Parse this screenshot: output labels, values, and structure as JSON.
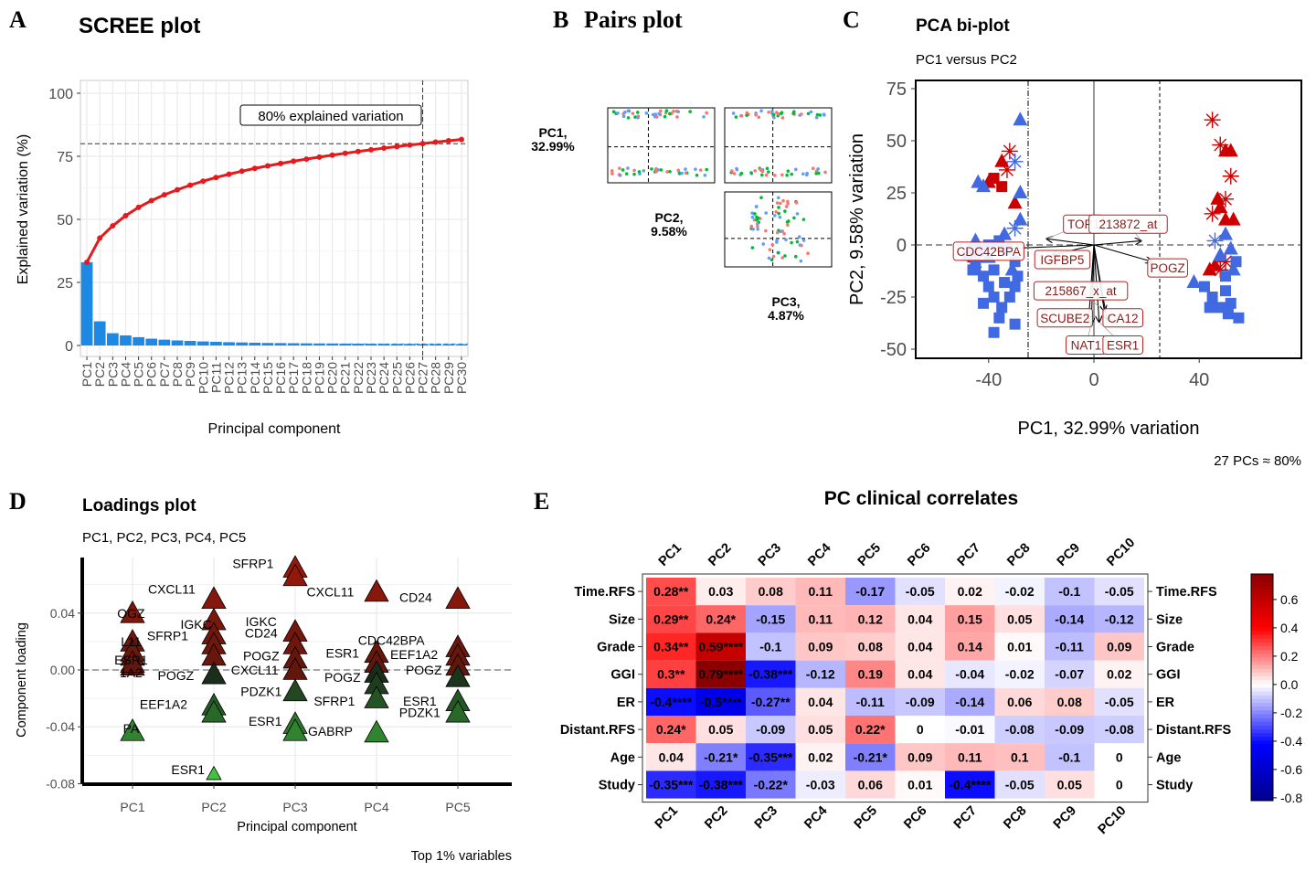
{
  "panels": {
    "a": {
      "letter": "A",
      "title": "SCREE plot",
      "xlabel": "Principal component",
      "ylabel": "Explained variation (%)",
      "annotation": "80% explained variation"
    },
    "b": {
      "letter": "B",
      "title": "Pairs plot",
      "labels": [
        [
          "PC1,",
          "32.99%"
        ],
        [
          "PC2,",
          "9.58%"
        ],
        [
          "PC3,",
          "4.87%"
        ]
      ]
    },
    "c": {
      "letter": "C",
      "title": "PCA bi-plot",
      "subtitle": "PC1 versus PC2",
      "xlabel": "PC1, 32.99% variation",
      "ylabel": "PC2, 9.58% variation",
      "caption": "27 PCs ≈ 80%"
    },
    "d": {
      "letter": "D",
      "title": "Loadings plot",
      "subtitle": "PC1, PC2, PC3, PC4, PC5",
      "xlabel": "Principal component",
      "ylabel": "Component loading",
      "caption": "Top 1% variables"
    },
    "e": {
      "letter": "E",
      "title": "PC clinical correlates"
    }
  },
  "chart_data": [
    {
      "id": "scree",
      "type": "bar",
      "title": "SCREE plot",
      "xlabel": "Principal component",
      "ylabel": "Explained variation (%)",
      "ylim": [
        0,
        100
      ],
      "yticks": [
        0,
        25,
        50,
        75,
        100
      ],
      "categories": [
        "PC1",
        "PC2",
        "PC3",
        "PC4",
        "PC5",
        "PC6",
        "PC7",
        "PC8",
        "PC9",
        "PC10",
        "PC11",
        "PC12",
        "PC13",
        "PC14",
        "PC15",
        "PC16",
        "PC17",
        "PC18",
        "PC19",
        "PC20",
        "PC21",
        "PC22",
        "PC23",
        "PC24",
        "PC25",
        "PC26",
        "PC27",
        "PC28",
        "PC29",
        "PC30"
      ],
      "values": [
        32.99,
        9.58,
        4.87,
        4.0,
        3.3,
        2.7,
        2.3,
        2.0,
        1.8,
        1.6,
        1.45,
        1.3,
        1.2,
        1.1,
        1.0,
        0.95,
        0.9,
        0.85,
        0.8,
        0.77,
        0.74,
        0.71,
        0.68,
        0.65,
        0.62,
        0.6,
        0.58,
        0.56,
        0.54,
        0.52
      ],
      "cumulative": [
        32.99,
        42.57,
        47.44,
        51.44,
        54.74,
        57.44,
        59.74,
        61.74,
        63.54,
        65.14,
        66.59,
        67.89,
        69.09,
        70.19,
        71.19,
        72.14,
        73.04,
        73.89,
        74.69,
        75.46,
        76.2,
        76.91,
        77.59,
        78.24,
        78.86,
        79.46,
        80.04,
        80.6,
        81.14,
        81.66
      ],
      "threshold": 80,
      "threshold_pc": 27,
      "colors": {
        "bar": "#1e88e5",
        "line": "#e41a1c"
      }
    },
    {
      "id": "pairs",
      "type": "scatter",
      "title": "Pairs plot",
      "series_colors": [
        "#f8766d",
        "#00ba38",
        "#619cff"
      ]
    },
    {
      "id": "biplot",
      "type": "scatter",
      "title": "PCA bi-plot",
      "subtitle": "PC1 versus PC2",
      "xlabel": "PC1, 32.99% variation",
      "ylabel": "PC2, 9.58% variation",
      "xlim": [
        -60,
        64
      ],
      "ylim": [
        -55,
        78
      ],
      "xticks": [
        -40,
        0,
        40
      ],
      "yticks": [
        -50,
        -25,
        0,
        25,
        50,
        75
      ],
      "vlines": [
        -25,
        25
      ],
      "colors": {
        "red": "#cc0000",
        "blue": "#4169e1"
      },
      "points": [
        [
          -38,
          32,
          "r",
          "s"
        ],
        [
          -35,
          28,
          "r",
          "s"
        ],
        [
          -30,
          20,
          "r",
          "t"
        ],
        [
          -35,
          40,
          "r",
          "t"
        ],
        [
          -32,
          45,
          "r",
          "x"
        ],
        [
          -40,
          30,
          "r",
          "t"
        ],
        [
          -45,
          -8,
          "r",
          "x"
        ],
        [
          -33,
          36,
          "r",
          "x"
        ],
        [
          -28,
          60,
          "b",
          "t"
        ],
        [
          -42,
          28,
          "b",
          "t"
        ],
        [
          -30,
          40,
          "b",
          "x"
        ],
        [
          -28,
          25,
          "b",
          "t"
        ],
        [
          -44,
          30,
          "b",
          "t"
        ],
        [
          -28,
          12,
          "b",
          "t"
        ],
        [
          -30,
          8,
          "b",
          "x"
        ],
        [
          -48,
          -5,
          "b",
          "s"
        ],
        [
          -45,
          -10,
          "b",
          "s"
        ],
        [
          -42,
          -15,
          "b",
          "s"
        ],
        [
          -40,
          -20,
          "b",
          "s"
        ],
        [
          -38,
          -25,
          "b",
          "s"
        ],
        [
          -35,
          -30,
          "b",
          "s"
        ],
        [
          -32,
          -25,
          "b",
          "s"
        ],
        [
          -30,
          -20,
          "b",
          "s"
        ],
        [
          -29,
          -15,
          "b",
          "s"
        ],
        [
          -30,
          -8,
          "b",
          "s"
        ],
        [
          -33,
          -2,
          "b",
          "s"
        ],
        [
          -36,
          2,
          "b",
          "s"
        ],
        [
          -40,
          0,
          "b",
          "s"
        ],
        [
          -44,
          -3,
          "b",
          "s"
        ],
        [
          -46,
          -12,
          "b",
          "s"
        ],
        [
          -38,
          -12,
          "b",
          "s"
        ],
        [
          -34,
          -18,
          "b",
          "s"
        ],
        [
          -42,
          -28,
          "b",
          "s"
        ],
        [
          -36,
          -35,
          "b",
          "s"
        ],
        [
          -30,
          -38,
          "b",
          "s"
        ],
        [
          -40,
          -6,
          "b",
          "t"
        ],
        [
          -34,
          5,
          "b",
          "t"
        ],
        [
          -31,
          -12,
          "b",
          "t"
        ],
        [
          -45,
          2,
          "b",
          "t"
        ],
        [
          -38,
          -42,
          "b",
          "s"
        ],
        [
          45,
          60,
          "r",
          "x"
        ],
        [
          50,
          45,
          "r",
          "t"
        ],
        [
          48,
          48,
          "r",
          "x"
        ],
        [
          52,
          33,
          "r",
          "x"
        ],
        [
          50,
          22,
          "r",
          "x"
        ],
        [
          48,
          18,
          "r",
          "t"
        ],
        [
          45,
          15,
          "r",
          "x"
        ],
        [
          50,
          12,
          "r",
          "t"
        ],
        [
          53,
          12,
          "r",
          "t"
        ],
        [
          46,
          -10,
          "r",
          "t"
        ],
        [
          48,
          -12,
          "r",
          "x"
        ],
        [
          50,
          -8,
          "r",
          "x"
        ],
        [
          44,
          -12,
          "r",
          "t"
        ],
        [
          52,
          45,
          "r",
          "t"
        ],
        [
          47,
          22,
          "r",
          "t"
        ],
        [
          38,
          -18,
          "b",
          "t"
        ],
        [
          42,
          -20,
          "b",
          "s"
        ],
        [
          45,
          -25,
          "b",
          "s"
        ],
        [
          48,
          -30,
          "b",
          "s"
        ],
        [
          50,
          -22,
          "b",
          "s"
        ],
        [
          52,
          -28,
          "b",
          "s"
        ],
        [
          55,
          -35,
          "b",
          "s"
        ],
        [
          50,
          -15,
          "b",
          "s"
        ],
        [
          53,
          -12,
          "b",
          "t"
        ],
        [
          48,
          -5,
          "b",
          "t"
        ],
        [
          52,
          -2,
          "b",
          "t"
        ],
        [
          46,
          2,
          "b",
          "x"
        ],
        [
          50,
          5,
          "b",
          "t"
        ],
        [
          54,
          -8,
          "b",
          "s"
        ],
        [
          44,
          -30,
          "b",
          "s"
        ],
        [
          51,
          -33,
          "b",
          "s"
        ]
      ],
      "loadings": [
        {
          "label": "TOP1",
          "x": -18,
          "y": 3,
          "lx": -4,
          "ly": 10
        },
        {
          "label": "213872_at",
          "x": 18,
          "y": 2,
          "lx": 13,
          "ly": 10
        },
        {
          "label": "CDC42BPA",
          "x": -38,
          "y": -2,
          "lx": -40,
          "ly": -3
        },
        {
          "label": "IGFBP5",
          "x": -16,
          "y": -5,
          "lx": -12,
          "ly": -7
        },
        {
          "label": "POGZ",
          "x": 22,
          "y": -8,
          "lx": 28,
          "ly": -11
        },
        {
          "label": "215867_x_at",
          "x": 4,
          "y": -32,
          "lx": -5,
          "ly": -22
        },
        {
          "label": "SCUBE2",
          "x": -2,
          "y": -36,
          "lx": -11,
          "ly": -35
        },
        {
          "label": "CA12",
          "x": 5,
          "y": -36,
          "lx": 11,
          "ly": -35
        },
        {
          "label": "NAT1",
          "x": -1,
          "y": -38,
          "lx": -3,
          "ly": -48
        },
        {
          "label": "ESR1",
          "x": 2,
          "y": -37,
          "lx": 11,
          "ly": -48
        }
      ]
    },
    {
      "id": "loadings",
      "type": "scatter",
      "title": "Loadings plot",
      "subtitle": "PC1, PC2, PC3, PC4, PC5",
      "xlabel": "Principal component",
      "ylabel": "Component loading",
      "categories": [
        "PC1",
        "PC2",
        "PC3",
        "PC4",
        "PC5"
      ],
      "ylim": [
        -0.08,
        0.075
      ],
      "yticks": [
        -0.08,
        -0.04,
        0.0,
        0.04
      ],
      "ytick_labels": [
        "-0.08",
        "-0.04",
        "0.00",
        "0.04"
      ],
      "points": [
        {
          "pc": 0,
          "y": 0.04,
          "label": "OGZ",
          "lx": 0.0,
          "ly": 0.04
        },
        {
          "pc": 0,
          "y": 0.02,
          "label": "L11",
          "lx": 0.0,
          "ly": 0.02
        },
        {
          "pc": 0,
          "y": 0.01,
          "label": "ESR1",
          "lx": 0.0,
          "ly": 0.007
        },
        {
          "pc": 0,
          "y": 0.003,
          "label": "1A2",
          "lx": 0.0,
          "ly": -0.002
        },
        {
          "pc": 0,
          "y": -0.043,
          "label": "PA",
          "lx": 0.0,
          "ly": -0.041
        },
        {
          "pc": 0,
          "y": 0.013
        },
        {
          "pc": 0,
          "y": 0.005
        },
        {
          "pc": 1,
          "y": 0.05,
          "label": "CXCL11",
          "lx": 0.5,
          "ly": 0.057
        },
        {
          "pc": 1,
          "y": 0.035,
          "label": "IGKC",
          "lx": 0.8,
          "ly": 0.032
        },
        {
          "pc": 1,
          "y": 0.025,
          "label": "SFRP1",
          "lx": 0.45,
          "ly": 0.024
        },
        {
          "pc": 1,
          "y": 0.018
        },
        {
          "pc": 1,
          "y": 0.01
        },
        {
          "pc": 1,
          "y": -0.003,
          "label": "POGZ",
          "lx": 0.55,
          "ly": -0.004
        },
        {
          "pc": 1,
          "y": -0.025,
          "label": "EEF1A2",
          "lx": 0.4,
          "ly": -0.024
        },
        {
          "pc": 1,
          "y": -0.03
        },
        {
          "pc": 1,
          "y": -0.073,
          "label": "ESR1",
          "lx": 0.7,
          "ly": -0.07
        },
        {
          "pc": 2,
          "y": 0.072,
          "label": "SFRP1",
          "lx": 1.5,
          "ly": 0.075
        },
        {
          "pc": 2,
          "y": 0.066,
          "label": "CXCL11",
          "lx": 2.45,
          "ly": 0.055
        },
        {
          "pc": 2,
          "y": 0.027,
          "label": "IGKC",
          "lx": 1.6,
          "ly": 0.034
        },
        {
          "pc": 2,
          "y": 0.018,
          "label": "CD24",
          "lx": 1.6,
          "ly": 0.026
        },
        {
          "pc": 2,
          "y": 0.008,
          "label": "POGZ",
          "lx": 1.6,
          "ly": 0.01
        },
        {
          "pc": 2,
          "y": 0.0,
          "label": "CXCL11",
          "lx": 1.52,
          "ly": 0.0
        },
        {
          "pc": 2,
          "y": -0.015,
          "label": "PDZK1",
          "lx": 1.6,
          "ly": -0.015
        },
        {
          "pc": 2,
          "y": -0.038,
          "label": "ESR1",
          "lx": 1.65,
          "ly": -0.036
        },
        {
          "pc": 2,
          "y": -0.043,
          "label": "GABRP",
          "lx": 2.45,
          "ly": -0.043
        },
        {
          "pc": 3,
          "y": 0.055,
          "label": "CD24",
          "lx": 3.5,
          "ly": 0.051
        },
        {
          "pc": 3,
          "y": 0.012,
          "label": "ESR1",
          "lx": 2.6,
          "ly": 0.012
        },
        {
          "pc": 3,
          "y": 0.005,
          "label": "CDC42BPA",
          "lx": 3.2,
          "ly": 0.021
        },
        {
          "pc": 3,
          "y": -0.002,
          "label": "POGZ",
          "lx": 2.6,
          "ly": -0.005
        },
        {
          "pc": 3,
          "y": -0.01,
          "label": "SFRP1",
          "lx": 2.5,
          "ly": -0.022
        },
        {
          "pc": 3,
          "y": -0.02
        },
        {
          "pc": 3,
          "y": -0.044
        },
        {
          "pc": 4,
          "y": 0.05
        },
        {
          "pc": 4,
          "y": 0.016,
          "label": "EEF1A2",
          "lx": 3.48,
          "ly": 0.011
        },
        {
          "pc": 4,
          "y": 0.01
        },
        {
          "pc": 4,
          "y": 0.003,
          "label": "POGZ",
          "lx": 3.6,
          "ly": 0.0
        },
        {
          "pc": 4,
          "y": -0.005
        },
        {
          "pc": 4,
          "y": -0.022,
          "label": "ESR1",
          "lx": 3.55,
          "ly": -0.022
        },
        {
          "pc": 4,
          "y": -0.03,
          "label": "PDZK1",
          "lx": 3.55,
          "ly": -0.03
        }
      ]
    },
    {
      "id": "correlates",
      "type": "heatmap",
      "title": "PC clinical correlates",
      "columns": [
        "PC1",
        "PC2",
        "PC3",
        "PC4",
        "PC5",
        "PC6",
        "PC7",
        "PC8",
        "PC9",
        "PC10"
      ],
      "rows": [
        "Time.RFS",
        "Size",
        "Grade",
        "GGI",
        "ER",
        "Distant.RFS",
        "Age",
        "Study"
      ],
      "values": [
        [
          0.28,
          0.03,
          0.08,
          0.11,
          -0.17,
          -0.05,
          0.02,
          -0.02,
          -0.1,
          -0.05
        ],
        [
          0.29,
          0.24,
          -0.15,
          0.11,
          0.12,
          0.04,
          0.15,
          0.05,
          -0.14,
          -0.12
        ],
        [
          0.34,
          0.59,
          -0.1,
          0.09,
          0.08,
          0.04,
          0.14,
          0.01,
          -0.11,
          0.09
        ],
        [
          0.3,
          0.79,
          -0.38,
          -0.12,
          0.19,
          0.04,
          -0.04,
          -0.02,
          -0.07,
          0.02
        ],
        [
          -0.4,
          -0.5,
          -0.27,
          0.04,
          -0.11,
          -0.09,
          -0.14,
          0.06,
          0.08,
          -0.05
        ],
        [
          0.24,
          0.05,
          -0.09,
          0.05,
          0.22,
          0,
          -0.01,
          -0.08,
          -0.09,
          -0.08
        ],
        [
          0.04,
          -0.21,
          -0.35,
          0.02,
          -0.21,
          0.09,
          0.11,
          0.1,
          -0.1,
          0
        ],
        [
          -0.35,
          -0.38,
          -0.22,
          -0.03,
          0.06,
          0.01,
          -0.4,
          -0.05,
          0.05,
          0
        ]
      ],
      "labels": [
        [
          "0.28**",
          "0.03",
          "0.08",
          "0.11",
          "-0.17",
          "-0.05",
          "0.02",
          "-0.02",
          "-0.1",
          "-0.05"
        ],
        [
          "0.29**",
          "0.24*",
          "-0.15",
          "0.11",
          "0.12",
          "0.04",
          "0.15",
          "0.05",
          "-0.14",
          "-0.12"
        ],
        [
          "0.34**",
          "0.59****",
          "-0.1",
          "0.09",
          "0.08",
          "0.04",
          "0.14",
          "0.01",
          "-0.11",
          "0.09"
        ],
        [
          "0.3**",
          "0.79****",
          "-0.38***",
          "-0.12",
          "0.19",
          "0.04",
          "-0.04",
          "-0.02",
          "-0.07",
          "0.02"
        ],
        [
          "-0.4****",
          "-0.5****",
          "-0.27**",
          "0.04",
          "-0.11",
          "-0.09",
          "-0.14",
          "0.06",
          "0.08",
          "-0.05"
        ],
        [
          "0.24*",
          "0.05",
          "-0.09",
          "0.05",
          "0.22*",
          "0",
          "-0.01",
          "-0.08",
          "-0.09",
          "-0.08"
        ],
        [
          "0.04",
          "-0.21*",
          "-0.35***",
          "0.02",
          "-0.21*",
          "0.09",
          "0.11",
          "0.1",
          "-0.1",
          "0"
        ],
        [
          "-0.35***",
          "-0.38***",
          "-0.22*",
          "-0.03",
          "0.06",
          "0.01",
          "-0.4****",
          "-0.05",
          "0.05",
          "0"
        ]
      ],
      "legend_ticks": [
        0.6,
        0.4,
        0.2,
        0.0,
        -0.2,
        -0.4,
        -0.6,
        -0.8
      ],
      "legend_tick_labels": [
        "0.6",
        "0.4",
        "0.2",
        "0.0",
        "-0.2",
        "-0.4",
        "-0.6",
        "-0.8"
      ],
      "legend_range": [
        -0.82,
        0.78
      ],
      "colors": {
        "low": "#00008b",
        "mid_low": "#0000ff",
        "mid": "#ffffff",
        "mid_high": "#ff0000",
        "high": "#8b0000"
      }
    }
  ]
}
